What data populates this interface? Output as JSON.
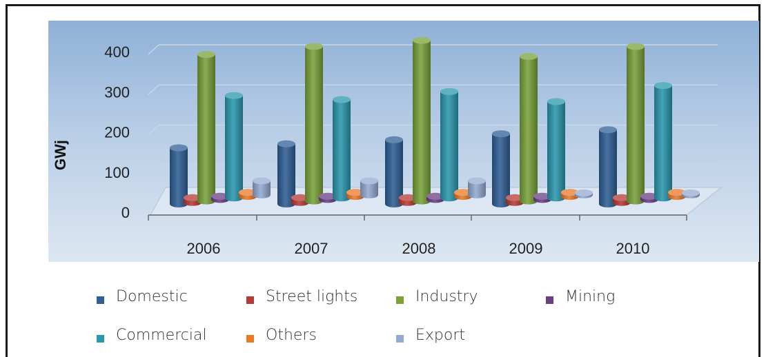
{
  "chart_data": {
    "type": "bar",
    "ylabel": "GWj",
    "xlabel": "",
    "ylim": [
      0,
      400
    ],
    "yticks": [
      "0",
      "100",
      "200",
      "300",
      "400"
    ],
    "categories": [
      "2006",
      "2007",
      "2008",
      "2009",
      "2010"
    ],
    "series": [
      {
        "name": "Domestic",
        "color": "#2f5f95",
        "values": [
          140,
          150,
          160,
          175,
          185
        ]
      },
      {
        "name": "Street lights",
        "color": "#b63a36",
        "values": [
          12,
          12,
          12,
          12,
          12
        ]
      },
      {
        "name": "Industry",
        "color": "#79a23a",
        "values": [
          365,
          385,
          400,
          360,
          385
        ]
      },
      {
        "name": "Mining",
        "color": "#6a3f84",
        "values": [
          8,
          8,
          8,
          8,
          8
        ]
      },
      {
        "name": "Commercial",
        "color": "#2a98ad",
        "values": [
          255,
          245,
          265,
          240,
          280
        ]
      },
      {
        "name": "Others",
        "color": "#e97a2a",
        "values": [
          10,
          10,
          10,
          10,
          10
        ]
      },
      {
        "name": "Export",
        "color": "#94aad1",
        "values": [
          35,
          35,
          35,
          5,
          5
        ]
      }
    ],
    "grid": true,
    "legend_position": "bottom"
  }
}
